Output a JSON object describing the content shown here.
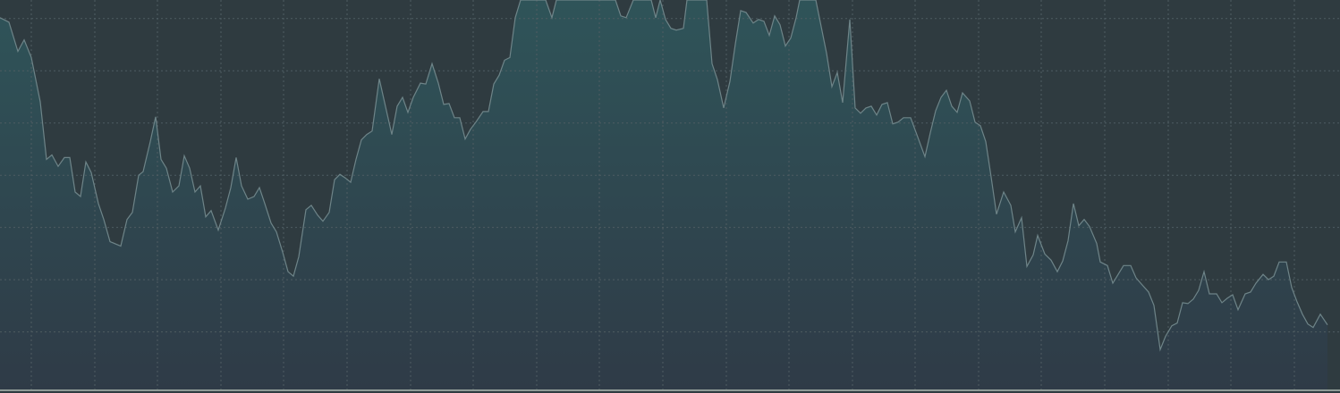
{
  "chart_data": {
    "type": "area",
    "color": "#6e8488",
    "fill_top": "#2f5459",
    "fill_bottom": "#2f3b47",
    "background": "#2f3b40",
    "grid": true,
    "xlim": [
      0,
      1498
    ],
    "ylim": [
      0,
      440
    ],
    "xticks": [
      35,
      106,
      176,
      247,
      317,
      388,
      459,
      529,
      600,
      670,
      741,
      812,
      882,
      953,
      1023,
      1094,
      1164,
      1235,
      1306,
      1376,
      1447
    ],
    "yticks": [
      65,
      124,
      183,
      242,
      301,
      360,
      419
    ],
    "x": [
      0,
      10,
      20,
      27,
      35,
      45,
      52,
      58,
      65,
      72,
      78,
      84,
      90,
      96,
      102,
      110,
      116,
      123,
      135,
      142,
      148,
      155,
      160,
      168,
      174,
      180,
      186,
      193,
      200,
      206,
      212,
      218,
      224,
      230,
      236,
      244,
      252,
      258,
      264,
      270,
      277,
      284,
      290,
      296,
      303,
      309,
      316,
      322,
      328,
      334,
      342,
      348,
      355,
      361,
      368,
      374,
      380,
      386,
      392,
      398,
      404,
      410,
      416,
      424,
      432,
      438,
      444,
      450,
      456,
      462,
      470,
      476,
      483,
      490,
      496,
      502,
      508,
      514,
      520,
      526,
      532,
      540,
      546,
      552,
      558,
      564,
      570,
      576,
      582,
      610,
      617,
      622,
      688,
      694,
      700,
      708,
      728,
      733,
      738,
      744,
      750,
      756,
      764,
      768,
      790,
      796,
      802,
      809,
      816,
      822,
      828,
      834,
      842,
      848,
      854,
      860,
      866,
      872,
      878,
      884,
      890,
      894,
      912,
      918,
      924,
      930,
      936,
      942,
      950,
      956,
      962,
      968,
      974,
      980,
      986,
      992,
      998,
      1004,
      1010,
      1018,
      1026,
      1034,
      1040,
      1046,
      1052,
      1058,
      1064,
      1070,
      1076,
      1084,
      1090,
      1096,
      1102,
      1108,
      1114,
      1122,
      1130,
      1135,
      1142,
      1148,
      1155,
      1160,
      1168,
      1175,
      1182,
      1188,
      1194,
      1200,
      1206,
      1212,
      1218,
      1226,
      1230,
      1238,
      1244,
      1250,
      1256,
      1264,
      1270,
      1277,
      1284,
      1290,
      1297,
      1303,
      1310,
      1316,
      1322,
      1328,
      1334,
      1340,
      1346,
      1352,
      1360,
      1366,
      1372,
      1378,
      1384,
      1392,
      1398,
      1404,
      1412,
      1418,
      1424,
      1430,
      1438,
      1444,
      1450,
      1456,
      1462,
      1468,
      1476,
      1484
    ],
    "values": [
      420,
      415,
      382,
      395,
      375,
      325,
      260,
      265,
      252,
      262,
      262,
      223,
      218,
      257,
      245,
      210,
      192,
      167,
      162,
      192,
      200,
      242,
      246,
      280,
      308,
      260,
      250,
      223,
      230,
      264,
      250,
      223,
      230,
      195,
      202,
      180,
      205,
      228,
      262,
      230,
      215,
      218,
      228,
      210,
      188,
      178,
      155,
      133,
      128,
      150,
      203,
      208,
      197,
      190,
      200,
      237,
      243,
      239,
      234,
      260,
      282,
      288,
      292,
      351,
      315,
      288,
      320,
      330,
      313,
      330,
      346,
      345,
      368,
      346,
      322,
      323,
      307,
      307,
      283,
      294,
      302,
      314,
      314,
      345,
      355,
      372,
      375,
      420,
      440,
      440,
      420,
      440,
      440,
      422,
      420,
      440,
      440,
      420,
      440,
      418,
      408,
      406,
      408,
      440,
      440,
      368,
      350,
      318,
      348,
      390,
      428,
      426,
      414,
      418,
      416,
      400,
      422,
      412,
      388,
      397,
      420,
      440,
      440,
      410,
      380,
      342,
      358,
      324,
      418,
      318,
      312,
      318,
      320,
      310,
      322,
      324,
      300,
      302,
      307,
      307,
      285,
      263,
      290,
      315,
      330,
      338,
      320,
      313,
      335,
      326,
      302,
      298,
      280,
      240,
      198,
      223,
      208,
      178,
      194,
      139,
      152,
      174,
      153,
      146,
      133,
      145,
      168,
      210,
      185,
      192,
      184,
      165,
      144,
      140,
      120,
      130,
      140,
      140,
      126,
      118,
      110,
      95,
      45,
      60,
      72,
      75,
      98,
      97,
      102,
      112,
      133,
      108,
      108,
      98,
      103,
      107,
      90,
      108,
      110,
      120,
      130,
      124,
      128,
      144,
      144,
      115,
      99,
      85,
      74,
      70,
      85,
      73
    ]
  }
}
